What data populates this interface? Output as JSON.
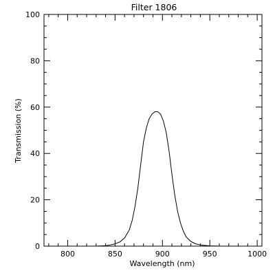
{
  "chart_data": {
    "type": "line",
    "title": "Filter 1806",
    "xlabel": "Wavelength (nm)",
    "ylabel": "Transmission (%)",
    "xlim": [
      775,
      1005
    ],
    "ylim": [
      0,
      100
    ],
    "xticks": [
      800,
      850,
      900,
      950,
      1000
    ],
    "yticks": [
      0,
      20,
      40,
      60,
      80,
      100
    ],
    "grid": false,
    "series": [
      {
        "color": "#000000",
        "x": [
          830,
          840,
          845,
          850,
          855,
          860,
          865,
          868,
          871,
          874,
          877,
          880,
          883,
          886,
          889,
          892,
          895,
          898,
          901,
          904,
          907,
          910,
          913,
          916,
          919,
          922,
          925,
          930,
          935,
          940,
          945,
          950,
          960,
          970,
          980
        ],
        "y": [
          0,
          0.2,
          0.5,
          1.0,
          1.8,
          3.5,
          7,
          11,
          17,
          25,
          35,
          45,
          51,
          55,
          57,
          58,
          58,
          57,
          54,
          49,
          41,
          31,
          22,
          15,
          10,
          6.5,
          4,
          2,
          1,
          0.5,
          0.3,
          0.1,
          0,
          0,
          0
        ]
      }
    ]
  }
}
